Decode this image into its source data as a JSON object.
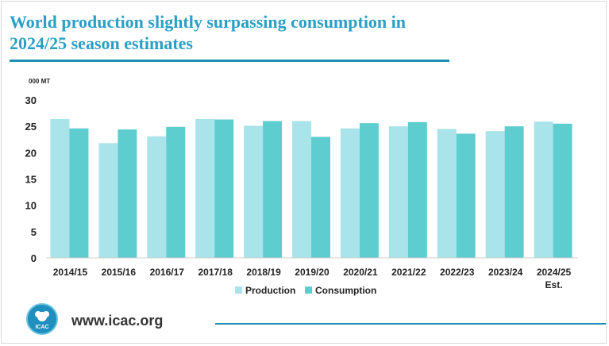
{
  "title_line1": "World production slightly surpassing consumption in",
  "title_line2": "2024/25 season estimates",
  "unit_label": "000 MT",
  "footer": {
    "url": "www.icac.org",
    "logo_text": "ICAC",
    "logo_icon": "cotton-boll-icon"
  },
  "colors": {
    "accent": "#2a9fc6",
    "production": "#a9e4ea",
    "consumption": "#5ecdd0"
  },
  "chart_data": {
    "type": "bar",
    "categories": [
      "2014/15",
      "2015/16",
      "2016/17",
      "2017/18",
      "2018/19",
      "2019/20",
      "2020/21",
      "2021/22",
      "2022/23",
      "2023/24",
      "2024/25 Est."
    ],
    "series": [
      {
        "name": "Production",
        "values": [
          26.4,
          21.8,
          23.1,
          26.4,
          25.1,
          26.0,
          24.6,
          25.0,
          24.5,
          24.1,
          25.9
        ]
      },
      {
        "name": "Consumption",
        "values": [
          24.6,
          24.4,
          24.9,
          26.3,
          26.0,
          23.0,
          25.6,
          25.8,
          23.6,
          25.0,
          25.5
        ]
      }
    ],
    "yticks": [
      0,
      5,
      10,
      15,
      20,
      25,
      30
    ],
    "ylim": [
      0,
      30
    ],
    "legend": "bottom-center",
    "grid": false
  }
}
